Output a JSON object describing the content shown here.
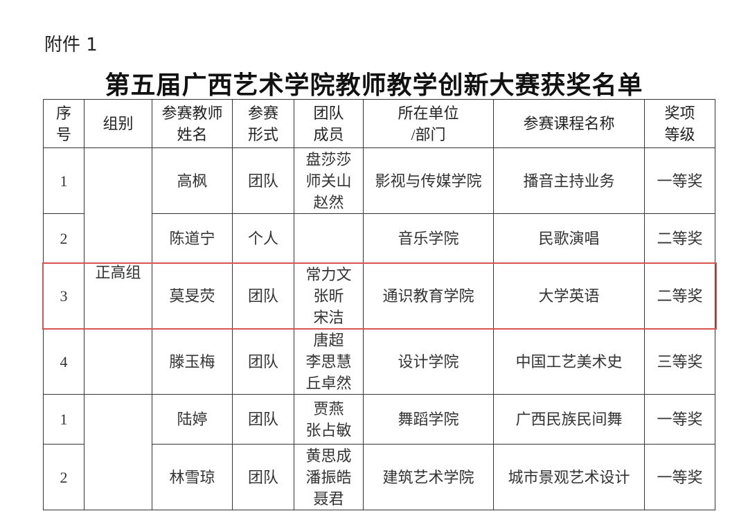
{
  "attachment_label": "附件 1",
  "title": "第五届广西艺术学院教师教学创新大赛获奖名单",
  "headers": [
    [
      "序",
      "号"
    ],
    [
      "组别"
    ],
    [
      "参赛教师",
      "姓名"
    ],
    [
      "参赛",
      "形式"
    ],
    [
      "团队",
      "成员"
    ],
    [
      "所在单位",
      "/部门"
    ],
    [
      "参赛课程名称"
    ],
    [
      "奖项",
      "等级"
    ]
  ],
  "groups": [
    "正高组",
    ""
  ],
  "rows": [
    {
      "no": "1",
      "name": "高枫",
      "form": "团队",
      "members": [
        "盘莎莎",
        "师关山",
        "赵然"
      ],
      "unit": "影视与传媒学院",
      "course": "播音主持业务",
      "award": "一等奖"
    },
    {
      "no": "2",
      "name": "陈道宁",
      "form": "个人",
      "members": [],
      "unit": "音乐学院",
      "course": "民歌演唱",
      "award": "二等奖"
    },
    {
      "no": "3",
      "name": "莫旻荧",
      "form": "团队",
      "members": [
        "常力文",
        "张昕",
        "宋洁"
      ],
      "unit": "通识教育学院",
      "course": "大学英语",
      "award": "二等奖",
      "highlighted": true
    },
    {
      "no": "4",
      "name": "滕玉梅",
      "form": "团队",
      "members": [
        "唐超",
        "李思慧",
        "丘卓然"
      ],
      "unit": "设计学院",
      "course": "中国工艺美术史",
      "award": "三等奖"
    },
    {
      "no": "1",
      "name": "陆婷",
      "form": "团队",
      "members": [
        "贾燕",
        "张占敏"
      ],
      "unit": "舞蹈学院",
      "course": "广西民族民间舞",
      "award": "一等奖"
    },
    {
      "no": "2",
      "name": "林雪琼",
      "form": "团队",
      "members": [
        "黄思成",
        "潘振皓",
        "聂君"
      ],
      "unit": "建筑艺术学院",
      "course": "城市景观艺术设计",
      "award": "一等奖"
    }
  ],
  "highlight_color": "#d9534f"
}
